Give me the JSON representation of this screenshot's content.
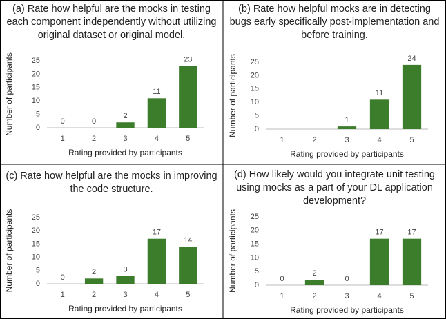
{
  "chart_data": [
    {
      "type": "bar",
      "title": "(a) Rate how helpful are the mocks in testing each component independently without utilizing original dataset or original model.",
      "x_label": "Rating provided by participants",
      "y_label": "Number of participants",
      "categories": [
        "1",
        "2",
        "3",
        "4",
        "5"
      ],
      "values": [
        0,
        0,
        2,
        11,
        23
      ],
      "color": "#3b7d2a",
      "ylim": [
        0,
        25
      ],
      "yticks": [
        0,
        5,
        10,
        15,
        20,
        25
      ]
    },
    {
      "type": "bar",
      "title": "(b) Rate how helpful mocks are in detecting bugs early specifically post-implementation and before training.",
      "x_label": "Rating provided by participants",
      "y_label": "Number of participants",
      "categories": [
        "1",
        "2",
        "3",
        "4",
        "5"
      ],
      "values": [
        null,
        null,
        1,
        11,
        24
      ],
      "color": "#3b7d2a",
      "ylim": [
        0,
        25
      ],
      "yticks": [
        0,
        5,
        10,
        15,
        20,
        25
      ]
    },
    {
      "type": "bar",
      "title": "(c) Rate how helpful are the mocks in improving the code structure.",
      "x_label": "Rating provided by participants",
      "y_label": "Number of participants",
      "categories": [
        "1",
        "2",
        "3",
        "4",
        "5"
      ],
      "values": [
        0,
        2,
        3,
        17,
        14
      ],
      "color": "#3b7d2a",
      "ylim": [
        0,
        25
      ],
      "yticks": [
        0,
        5,
        10,
        15,
        20,
        25
      ]
    },
    {
      "type": "bar",
      "title": "(d) How likely would you integrate unit testing using mocks as a part of your DL application development?",
      "x_label": "Rating provided by participants",
      "y_label": "Number of participants",
      "categories": [
        "1",
        "2",
        "3",
        "4",
        "5"
      ],
      "values": [
        0,
        2,
        0,
        17,
        17
      ],
      "color": "#3b7d2a",
      "ylim": [
        0,
        25
      ],
      "yticks": [
        0,
        5,
        10,
        15,
        20,
        25
      ]
    }
  ]
}
